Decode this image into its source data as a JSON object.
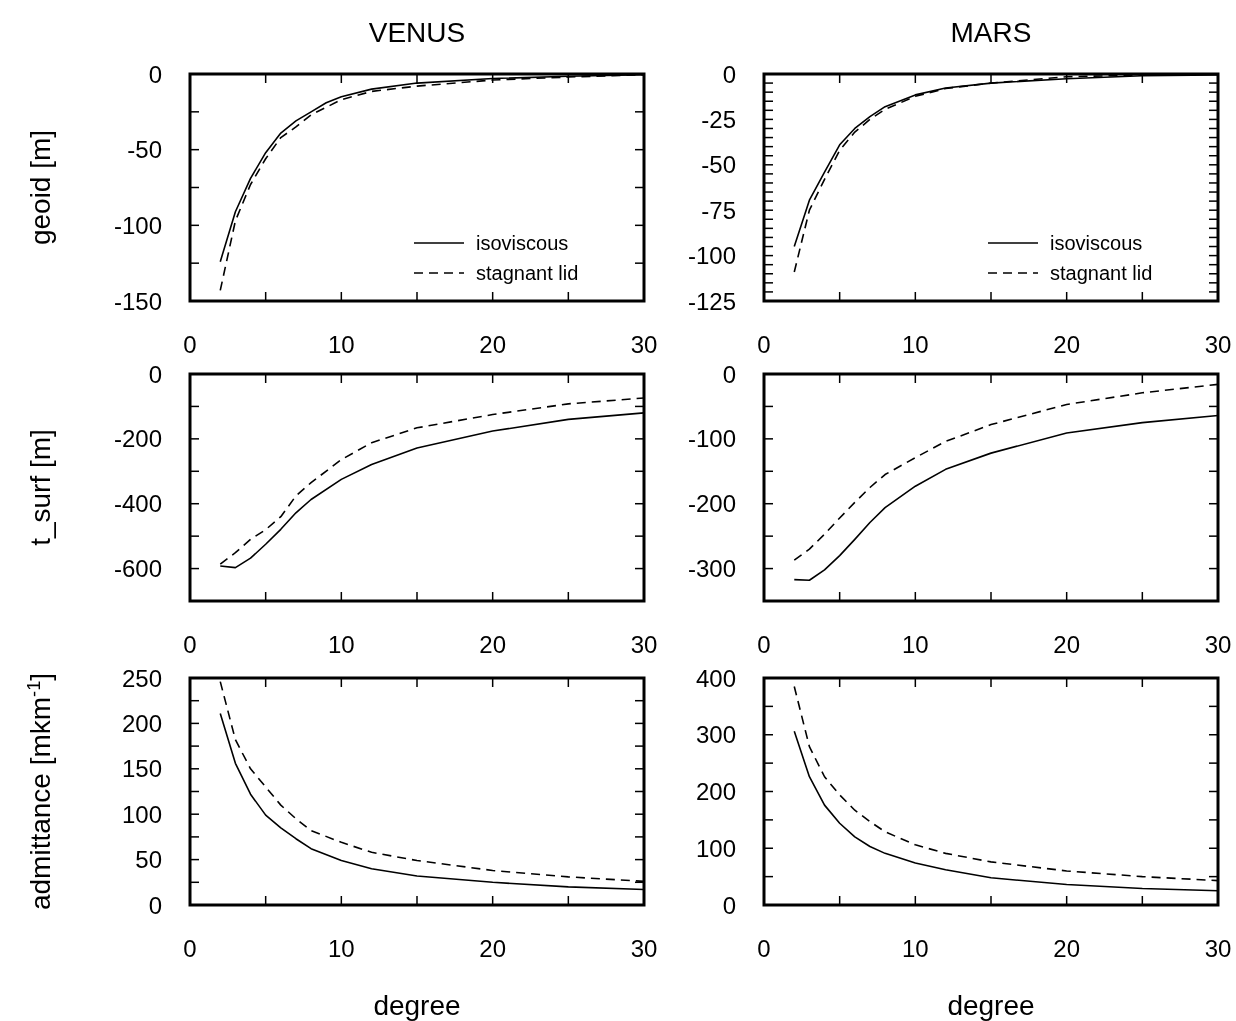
{
  "chart_data": [
    {
      "type": "line",
      "title": "VENUS",
      "ylabel": "geoid  [m]",
      "xlim": [
        0,
        30
      ],
      "xticks": [
        0,
        {
          "value": 5,
          "label": null
        },
        10,
        {
          "value": 15,
          "label": null
        },
        20,
        {
          "value": 25,
          "label": null
        },
        30
      ],
      "ylim": [
        -150,
        0
      ],
      "yticks": [
        -150,
        {
          "value": -125,
          "label": null
        },
        -100,
        {
          "value": -75,
          "label": null
        },
        -50,
        {
          "value": -25,
          "label": null
        },
        0
      ],
      "legend": "bottom right",
      "grid": false,
      "x": [
        2,
        3,
        4,
        5,
        6,
        7,
        8,
        9,
        10,
        12,
        15,
        20,
        25,
        30
      ],
      "series": [
        {
          "name": "isoviscous",
          "color": "#000000",
          "line_style": "solid",
          "values": [
            -124,
            -91,
            -69,
            -52,
            -39,
            -31,
            -25,
            -19,
            -15,
            -10,
            -6,
            -3,
            -1.5,
            -0.5
          ]
        },
        {
          "name": "stagnant lid",
          "color": "#000000",
          "line_style": "dashed",
          "values": [
            -143,
            -97,
            -73,
            -56,
            -42,
            -35,
            -27,
            -22,
            -17,
            -11.5,
            -8,
            -4,
            -2,
            -0.5
          ]
        }
      ]
    },
    {
      "type": "line",
      "title": "MARS",
      "xlim": [
        0,
        30
      ],
      "xticks": [
        0,
        {
          "value": 5,
          "label": null
        },
        10,
        {
          "value": 15,
          "label": null
        },
        20,
        {
          "value": 25,
          "label": null
        },
        30
      ],
      "ylim": [
        -125,
        0
      ],
      "yticks": [
        -125,
        {
          "value": -120,
          "label": null
        },
        {
          "value": -115,
          "label": null
        },
        {
          "value": -110,
          "label": null
        },
        {
          "value": -105,
          "label": null
        },
        -100,
        {
          "value": -95,
          "label": null
        },
        {
          "value": -90,
          "label": null
        },
        {
          "value": -85,
          "label": null
        },
        {
          "value": -80,
          "label": null
        },
        -75,
        {
          "value": -70,
          "label": null
        },
        {
          "value": -65,
          "label": null
        },
        {
          "value": -60,
          "label": null
        },
        {
          "value": -55,
          "label": null
        },
        -50,
        {
          "value": -45,
          "label": null
        },
        {
          "value": -40,
          "label": null
        },
        {
          "value": -35,
          "label": null
        },
        {
          "value": -30,
          "label": null
        },
        -25,
        {
          "value": -20,
          "label": null
        },
        {
          "value": -15,
          "label": null
        },
        {
          "value": -10,
          "label": null
        },
        {
          "value": -5,
          "label": null
        },
        0
      ],
      "legend": "bottom right",
      "grid": false,
      "x": [
        2,
        3,
        4,
        5,
        6,
        7,
        8,
        10,
        12,
        15,
        20,
        25,
        30
      ],
      "series": [
        {
          "name": "isoviscous",
          "color": "#000000",
          "line_style": "solid",
          "values": [
            -95,
            -69.5,
            -54,
            -39,
            -30,
            -23.5,
            -18,
            -11.5,
            -7.7,
            -5,
            -2.6,
            -1,
            -0.5
          ]
        },
        {
          "name": "stagnant lid",
          "color": "#000000",
          "line_style": "dashed",
          "values": [
            -109,
            -75,
            -58,
            -42,
            -32,
            -25,
            -19.5,
            -12.3,
            -8,
            -5,
            -1.5,
            -0.6,
            0
          ]
        }
      ]
    },
    {
      "type": "line",
      "ylabel": "t_surf [m]",
      "xlim": [
        0,
        30
      ],
      "xticks": [
        0,
        {
          "value": 5,
          "label": null
        },
        10,
        {
          "value": 15,
          "label": null
        },
        20,
        {
          "value": 25,
          "label": null
        },
        30
      ],
      "ylim": [
        -700,
        0
      ],
      "yticks": [
        -600,
        {
          "value": -500,
          "label": null
        },
        -400,
        {
          "value": -300,
          "label": null
        },
        -200,
        {
          "value": -100,
          "label": null
        },
        0
      ],
      "grid": false,
      "x": [
        2,
        3,
        4,
        5,
        6,
        7,
        8,
        10,
        12,
        15,
        20,
        25,
        30
      ],
      "series": [
        {
          "color": "#000000",
          "line_style": "solid",
          "values": [
            -592,
            -597,
            -568,
            -525,
            -479,
            -428,
            -387,
            -325,
            -279,
            -228,
            -176,
            -140,
            -120
          ]
        },
        {
          "color": "#000000",
          "line_style": "dashed",
          "values": [
            -586,
            -551,
            -510,
            -480,
            -440,
            -376,
            -335,
            -264,
            -212,
            -166,
            -125,
            -92,
            -74
          ]
        }
      ]
    },
    {
      "type": "line",
      "xlim": [
        0,
        30
      ],
      "xticks": [
        0,
        {
          "value": 5,
          "label": null
        },
        10,
        {
          "value": 15,
          "label": null
        },
        20,
        {
          "value": 25,
          "label": null
        },
        30
      ],
      "ylim": [
        -350,
        0
      ],
      "yticks": [
        -300,
        {
          "value": -250,
          "label": null
        },
        -200,
        {
          "value": -150,
          "label": null
        },
        -100,
        {
          "value": -50,
          "label": null
        },
        0
      ],
      "grid": false,
      "x": [
        2,
        3,
        4,
        5,
        6,
        7,
        8,
        10,
        12,
        15,
        20,
        25,
        30
      ],
      "series": [
        {
          "color": "#000000",
          "line_style": "solid",
          "values": [
            -317,
            -318,
            -302,
            -280,
            -255,
            -229,
            -206,
            -173,
            -147,
            -122,
            -91,
            -75,
            -64
          ]
        },
        {
          "color": "#000000",
          "line_style": "dashed",
          "values": [
            -287,
            -270,
            -247,
            -222,
            -198,
            -175,
            -155,
            -129,
            -104,
            -78,
            -47,
            -29,
            -16
          ]
        }
      ]
    },
    {
      "type": "line",
      "ylabel": "admittance  [mkm$^{-1}$]",
      "xlabel": "degree",
      "xlim": [
        0,
        30
      ],
      "xticks": [
        0,
        {
          "value": 5,
          "label": null
        },
        10,
        {
          "value": 15,
          "label": null
        },
        20,
        {
          "value": 25,
          "label": null
        },
        30
      ],
      "ylim": [
        0,
        250
      ],
      "yticks": [
        0,
        {
          "value": 25,
          "label": null
        },
        50,
        {
          "value": 75,
          "label": null
        },
        100,
        {
          "value": 125,
          "label": null
        },
        150,
        {
          "value": 175,
          "label": null
        },
        200,
        {
          "value": 225,
          "label": null
        },
        250
      ],
      "grid": false,
      "x": [
        2,
        3,
        4,
        5,
        6,
        7,
        8,
        10,
        12,
        15,
        20,
        25,
        30
      ],
      "series": [
        {
          "color": "#000000",
          "line_style": "solid",
          "values": [
            211,
            156,
            122,
            99,
            85,
            73,
            62,
            49,
            40,
            32,
            25,
            20,
            17
          ]
        },
        {
          "color": "#000000",
          "line_style": "dashed",
          "values": [
            246,
            182,
            150,
            130,
            110,
            95,
            82,
            69,
            58,
            49,
            38,
            31,
            26
          ]
        }
      ]
    },
    {
      "type": "line",
      "xlabel": "degree",
      "xlim": [
        0,
        30
      ],
      "xticks": [
        0,
        {
          "value": 5,
          "label": null
        },
        10,
        {
          "value": 15,
          "label": null
        },
        20,
        {
          "value": 25,
          "label": null
        },
        30
      ],
      "ylim": [
        0,
        400
      ],
      "yticks": [
        0,
        {
          "value": 50,
          "label": null
        },
        100,
        {
          "value": 150,
          "label": null
        },
        200,
        {
          "value": 250,
          "label": null
        },
        300,
        {
          "value": 350,
          "label": null
        },
        400
      ],
      "grid": false,
      "x": [
        2,
        3,
        4,
        5,
        6,
        7,
        8,
        10,
        12,
        15,
        20,
        25,
        30
      ],
      "series": [
        {
          "color": "#000000",
          "line_style": "solid",
          "values": [
            306,
            226,
            176,
            144,
            120,
            103,
            91,
            74,
            62,
            48,
            36,
            29,
            25
          ]
        },
        {
          "color": "#000000",
          "line_style": "dashed",
          "values": [
            385,
            279,
            226,
            194,
            167,
            147,
            129,
            106,
            91,
            76,
            60,
            50,
            43
          ]
        }
      ]
    }
  ]
}
